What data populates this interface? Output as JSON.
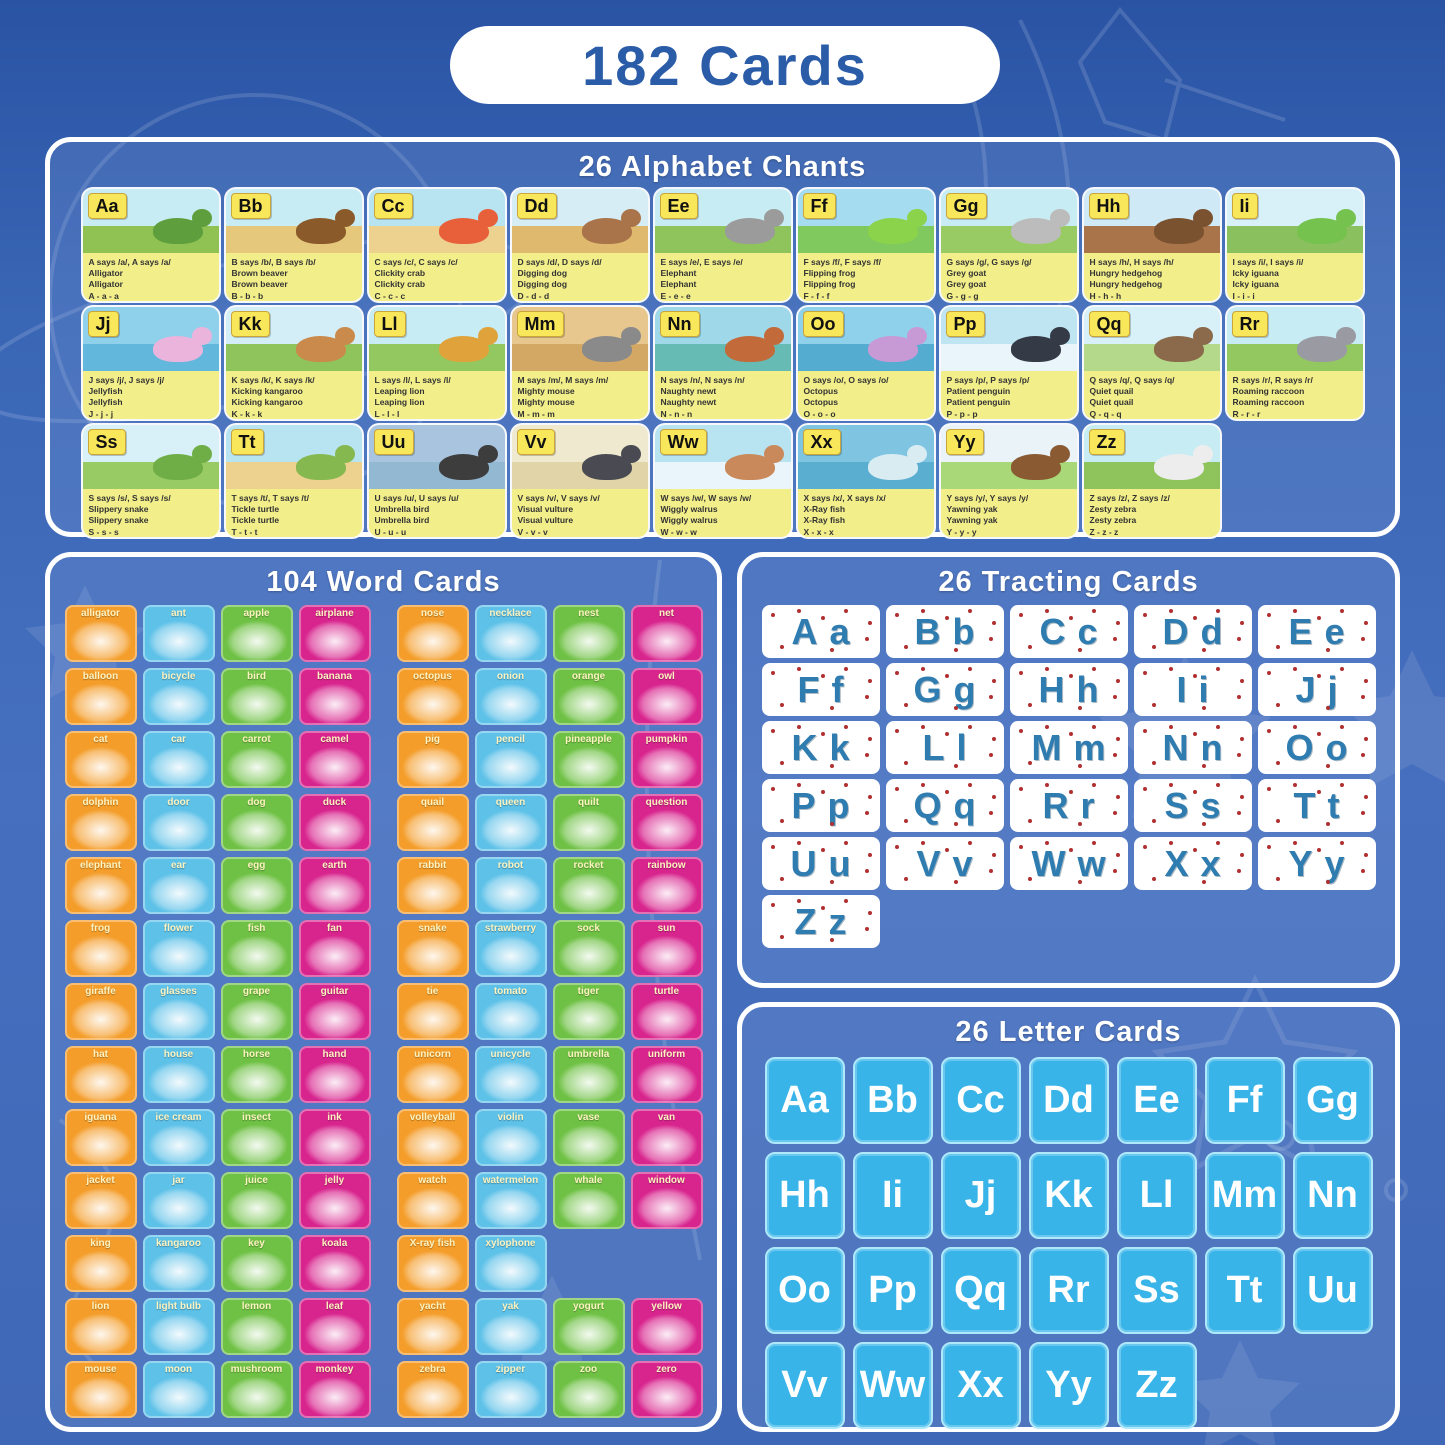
{
  "title": "182 Cards",
  "alphabet_chants": {
    "title": "26 Alphabet Chants",
    "cards": [
      {
        "letters": "Aa",
        "says": "A says /a/, A says /a/",
        "word": "Alligator",
        "chant": "A - a - a",
        "sky": "#c8ecf4",
        "ground": "#8fc252",
        "animal": "#5f9e3d"
      },
      {
        "letters": "Bb",
        "says": "B says /b/, B says /b/",
        "word": "Brown beaver",
        "chant": "B - b - b",
        "sky": "#c8ecf4",
        "ground": "#e6c87c",
        "animal": "#8b5a2b"
      },
      {
        "letters": "Cc",
        "says": "C says /c/, C says /c/",
        "word": "Clickity crab",
        "chant": "C - c - c",
        "sky": "#b8e4f2",
        "ground": "#ecd28e",
        "animal": "#e8603a"
      },
      {
        "letters": "Dd",
        "says": "D says /d/, D says /d/",
        "word": "Digging dog",
        "chant": "D - d - d",
        "sky": "#d6edf6",
        "ground": "#dfba6e",
        "animal": "#a9744a"
      },
      {
        "letters": "Ee",
        "says": "E says /e/, E says /e/",
        "word": "Elephant",
        "chant": "E - e - e",
        "sky": "#c8ecf4",
        "ground": "#8fc45c",
        "animal": "#9b9b9b"
      },
      {
        "letters": "Ff",
        "says": "F says /f/, F says /f/",
        "word": "Flipping frog",
        "chant": "F - f - f",
        "sky": "#a6dcef",
        "ground": "#7fc95e",
        "animal": "#8bd34a"
      },
      {
        "letters": "Gg",
        "says": "G says /g/, G says /g/",
        "word": "Grey goat",
        "chant": "G - g - g",
        "sky": "#c8ecf4",
        "ground": "#98cb63",
        "animal": "#bcbcbc"
      },
      {
        "letters": "Hh",
        "says": "H says /h/, H says /h/",
        "word": "Hungry hedgehog",
        "chant": "H - h - h",
        "sky": "#cfeaf6",
        "ground": "#a9744a",
        "animal": "#7a5230"
      },
      {
        "letters": "Ii",
        "says": "I says /i/, I says /i/",
        "word": "Icky iguana",
        "chant": "I - i - i",
        "sky": "#d8f0f8",
        "ground": "#8ac05e",
        "animal": "#76c24e"
      },
      {
        "letters": "Jj",
        "says": "J says /j/, J says /j/",
        "word": "Jellyfish",
        "chant": "J - j - j",
        "sky": "#8fd0ea",
        "ground": "#62b8dc",
        "animal": "#eab4dc"
      },
      {
        "letters": "Kk",
        "says": "K says /k/, K says /k/",
        "word": "Kicking kangaroo",
        "chant": "K - k - k",
        "sky": "#d4eef8",
        "ground": "#8fc45c",
        "animal": "#c98a4b"
      },
      {
        "letters": "Ll",
        "says": "L says /l/, L says /l/",
        "word": "Leaping lion",
        "chant": "L - l - l",
        "sky": "#c8ecf4",
        "ground": "#93c75f",
        "animal": "#e0a33c"
      },
      {
        "letters": "Mm",
        "says": "M says /m/, M says /m/",
        "word": "Mighty mouse",
        "chant": "M - m - m",
        "sky": "#e7c78e",
        "ground": "#d3a864",
        "animal": "#8a8a8a"
      },
      {
        "letters": "Nn",
        "says": "N says /n/, N says /n/",
        "word": "Naughty newt",
        "chant": "N - n - n",
        "sky": "#9fd8e8",
        "ground": "#66bcb4",
        "animal": "#c26a3a"
      },
      {
        "letters": "Oo",
        "says": "O says /o/, O says /o/",
        "word": "Octopus",
        "chant": "O - o - o",
        "sky": "#8fd0ea",
        "ground": "#54acd0",
        "animal": "#c79ad6"
      },
      {
        "letters": "Pp",
        "says": "P says /p/, P says /p/",
        "word": "Patient penguin",
        "chant": "P - p - p",
        "sky": "#bfe4f2",
        "ground": "#e9f5fb",
        "animal": "#343b46"
      },
      {
        "letters": "Qq",
        "says": "Q says /q/, Q says /q/",
        "word": "Quiet quail",
        "chant": "Q - q - q",
        "sky": "#d8f0f8",
        "ground": "#b5d98a",
        "animal": "#8a6a4a"
      },
      {
        "letters": "Rr",
        "says": "R says /r/, R says /r/",
        "word": "Roaming raccoon",
        "chant": "R - r - r",
        "sky": "#c8ecf4",
        "ground": "#93c75f",
        "animal": "#9a9aa2"
      },
      {
        "letters": "Ss",
        "says": "S says /s/, S says /s/",
        "word": "Slippery snake",
        "chant": "S - s - s",
        "sky": "#d8f0f8",
        "ground": "#98cb63",
        "animal": "#6fae46"
      },
      {
        "letters": "Tt",
        "says": "T says /t/, T says /t/",
        "word": "Tickle turtle",
        "chant": "T - t - t",
        "sky": "#b8e4f2",
        "ground": "#ecd28e",
        "animal": "#86b850"
      },
      {
        "letters": "Uu",
        "says": "U says /u/, U says /u/",
        "word": "Umbrella bird",
        "chant": "U - u - u",
        "sky": "#a8c4de",
        "ground": "#93b8d2",
        "animal": "#3d3d3d"
      },
      {
        "letters": "Vv",
        "says": "V says /v/, V says /v/",
        "word": "Visual vulture",
        "chant": "V - v - v",
        "sky": "#efe9cf",
        "ground": "#e0d4a8",
        "animal": "#4a4a52"
      },
      {
        "letters": "Ww",
        "says": "W says /w/, W says /w/",
        "word": "Wiggly walrus",
        "chant": "W - w - w",
        "sky": "#b8e4f2",
        "ground": "#e9f5fb",
        "animal": "#c9895a"
      },
      {
        "letters": "Xx",
        "says": "X says /x/, X says /x/",
        "word": "X-Ray fish",
        "chant": "X - x - x",
        "sky": "#7fc4e0",
        "ground": "#5aaed0",
        "animal": "#d9ecf2"
      },
      {
        "letters": "Yy",
        "says": "Y says /y/, Y says /y/",
        "word": "Yawning yak",
        "chant": "Y - y - y",
        "sky": "#e9f3f8",
        "ground": "#a8d878",
        "animal": "#8a5a33"
      },
      {
        "letters": "Zz",
        "says": "Z says /z/, Z says /z/",
        "word": "Zesty zebra",
        "chant": "Z - z - z",
        "sky": "#c8ecf4",
        "ground": "#8fc45c",
        "animal": "#ededed"
      }
    ]
  },
  "word_cards": {
    "title": "104 Word Cards",
    "palette": [
      "#f49d2a",
      "#5ec1e8",
      "#6fc145",
      "#d8258e"
    ],
    "groups": [
      {
        "rows": [
          [
            "alligator",
            "ant",
            "apple",
            "airplane"
          ],
          [
            "balloon",
            "bicycle",
            "bird",
            "banana"
          ],
          [
            "cat",
            "car",
            "carrot",
            "camel"
          ],
          [
            "dolphin",
            "door",
            "dog",
            "duck"
          ],
          [
            "elephant",
            "ear",
            "egg",
            "earth"
          ],
          [
            "frog",
            "flower",
            "fish",
            "fan"
          ],
          [
            "giraffe",
            "glasses",
            "grape",
            "guitar"
          ],
          [
            "hat",
            "house",
            "horse",
            "hand"
          ],
          [
            "iguana",
            "ice cream",
            "insect",
            "ink"
          ],
          [
            "jacket",
            "jar",
            "juice",
            "jelly"
          ],
          [
            "king",
            "kangaroo",
            "key",
            "koala"
          ],
          [
            "lion",
            "light bulb",
            "lemon",
            "leaf"
          ],
          [
            "mouse",
            "moon",
            "mushroom",
            "monkey"
          ]
        ]
      },
      {
        "rows": [
          [
            "nose",
            "necklace",
            "nest",
            "net"
          ],
          [
            "octopus",
            "onion",
            "orange",
            "owl"
          ],
          [
            "pig",
            "pencil",
            "pineapple",
            "pumpkin"
          ],
          [
            "quail",
            "queen",
            "quilt",
            "question"
          ],
          [
            "rabbit",
            "robot",
            "rocket",
            "rainbow"
          ],
          [
            "snake",
            "strawberry",
            "sock",
            "sun"
          ],
          [
            "tie",
            "tomato",
            "tiger",
            "turtle"
          ],
          [
            "unicorn",
            "unicycle",
            "umbrella",
            "uniform"
          ],
          [
            "volleyball",
            "violin",
            "vase",
            "van"
          ],
          [
            "watch",
            "watermelon",
            "whale",
            "window"
          ],
          [
            "X-ray fish",
            "xylophone",
            null,
            null
          ],
          [
            "yacht",
            "yak",
            "yogurt",
            "yellow"
          ],
          [
            "zebra",
            "zipper",
            "zoo",
            "zero"
          ]
        ]
      }
    ]
  },
  "tracing_cards": {
    "title": "26 Tracting Cards",
    "letter_color": "#2e7cb0",
    "dot_color": "#b03030",
    "letters": [
      "Aa",
      "Bb",
      "Cc",
      "Dd",
      "Ee",
      "Ff",
      "Gg",
      "Hh",
      "Ii",
      "Jj",
      "Kk",
      "Ll",
      "Mm",
      "Nn",
      "Oo",
      "Pp",
      "Qq",
      "Rr",
      "Ss",
      "Tt",
      "Uu",
      "Vv",
      "Ww",
      "Xx",
      "Yy",
      "Zz"
    ]
  },
  "letter_cards": {
    "title": "26 Letter Cards",
    "card_color": "#38b4e8",
    "border_color": "#aee8fa",
    "letters": [
      "Aa",
      "Bb",
      "Cc",
      "Dd",
      "Ee",
      "Ff",
      "Gg",
      "Hh",
      "Ii",
      "Jj",
      "Kk",
      "Ll",
      "Mm",
      "Nn",
      "Oo",
      "Pp",
      "Qq",
      "Rr",
      "Ss",
      "Tt",
      "Uu",
      "Vv",
      "Ww",
      "Xx",
      "Yy",
      "Zz"
    ]
  }
}
